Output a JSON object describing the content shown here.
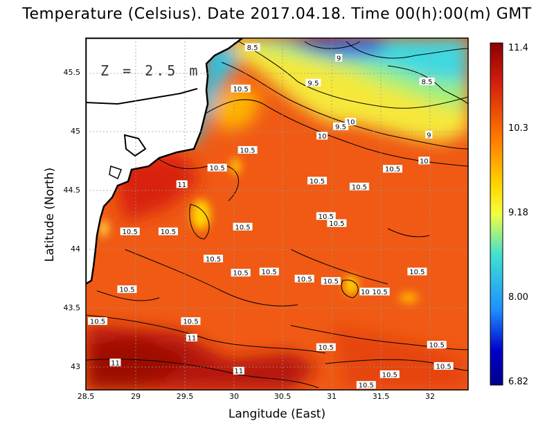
{
  "title": "Temperature (Celsius). Date 2017.04.18. Time 00(h):00(m)  GMT",
  "xlabel": "Langitude (East)",
  "ylabel": "Latitude (North)",
  "depth_label": "Z = 2.5 m",
  "x_ticks": [
    "28.5",
    "29",
    "29.5",
    "30",
    "30.5",
    "31",
    "31.5",
    "32"
  ],
  "y_ticks": [
    "45.5",
    "45",
    "44.5",
    "44",
    "43.5",
    "43"
  ],
  "colorbar": {
    "ticks": [
      "11.4",
      "10.3",
      "9.18",
      "8.00",
      "6.82"
    ],
    "colors": [
      "#8b0000",
      "#d4200c",
      "#ff7a00",
      "#ffd800",
      "#f2ff40",
      "#40e0d0",
      "#1e90ff",
      "#0000c8",
      "#00008b"
    ]
  },
  "contour_labels": [
    {
      "text": "8.5",
      "lon": 30.2,
      "lat": 45.72
    },
    {
      "text": "9",
      "lon": 31.08,
      "lat": 45.63
    },
    {
      "text": "9.5",
      "lon": 30.82,
      "lat": 45.42
    },
    {
      "text": "8.5",
      "lon": 31.98,
      "lat": 45.43
    },
    {
      "text": "10.5",
      "lon": 30.08,
      "lat": 45.37
    },
    {
      "text": "10",
      "lon": 31.2,
      "lat": 45.09
    },
    {
      "text": "9.5",
      "lon": 31.1,
      "lat": 45.05
    },
    {
      "text": "10",
      "lon": 30.91,
      "lat": 44.97
    },
    {
      "text": "9",
      "lon": 32.0,
      "lat": 44.98
    },
    {
      "text": "10.5",
      "lon": 30.15,
      "lat": 44.85
    },
    {
      "text": "10",
      "lon": 31.95,
      "lat": 44.76
    },
    {
      "text": "10.5",
      "lon": 31.63,
      "lat": 44.69
    },
    {
      "text": "10.5",
      "lon": 29.84,
      "lat": 44.7
    },
    {
      "text": "10.5",
      "lon": 30.86,
      "lat": 44.59
    },
    {
      "text": "11",
      "lon": 29.48,
      "lat": 44.56
    },
    {
      "text": "10.5",
      "lon": 31.29,
      "lat": 44.54
    },
    {
      "text": "10.5",
      "lon": 30.95,
      "lat": 44.29
    },
    {
      "text": "10.5",
      "lon": 31.06,
      "lat": 44.23
    },
    {
      "text": "10.5",
      "lon": 30.1,
      "lat": 44.2
    },
    {
      "text": "10.5",
      "lon": 28.95,
      "lat": 44.16
    },
    {
      "text": "10.5",
      "lon": 29.34,
      "lat": 44.16
    },
    {
      "text": "10.5",
      "lon": 29.8,
      "lat": 43.93
    },
    {
      "text": "10.5",
      "lon": 30.08,
      "lat": 43.81
    },
    {
      "text": "10.5",
      "lon": 30.37,
      "lat": 43.82
    },
    {
      "text": "10.5",
      "lon": 30.73,
      "lat": 43.76
    },
    {
      "text": "10.5",
      "lon": 31.0,
      "lat": 43.74
    },
    {
      "text": "10.5",
      "lon": 31.88,
      "lat": 43.82
    },
    {
      "text": "10",
      "lon": 31.35,
      "lat": 43.65
    },
    {
      "text": "10.5",
      "lon": 31.5,
      "lat": 43.65
    },
    {
      "text": "10.5",
      "lon": 28.92,
      "lat": 43.67
    },
    {
      "text": "10.5",
      "lon": 28.62,
      "lat": 43.4
    },
    {
      "text": "10.5",
      "lon": 29.57,
      "lat": 43.4
    },
    {
      "text": "11",
      "lon": 29.58,
      "lat": 43.26
    },
    {
      "text": "10.5",
      "lon": 30.95,
      "lat": 43.18
    },
    {
      "text": "10.5",
      "lon": 32.08,
      "lat": 43.2
    },
    {
      "text": "11",
      "lon": 28.8,
      "lat": 43.05
    },
    {
      "text": "11",
      "lon": 30.06,
      "lat": 42.98
    },
    {
      "text": "10.5",
      "lon": 32.15,
      "lat": 43.02
    },
    {
      "text": "10.5",
      "lon": 31.6,
      "lat": 42.95
    },
    {
      "text": "10.5",
      "lon": 31.36,
      "lat": 42.86
    }
  ]
}
